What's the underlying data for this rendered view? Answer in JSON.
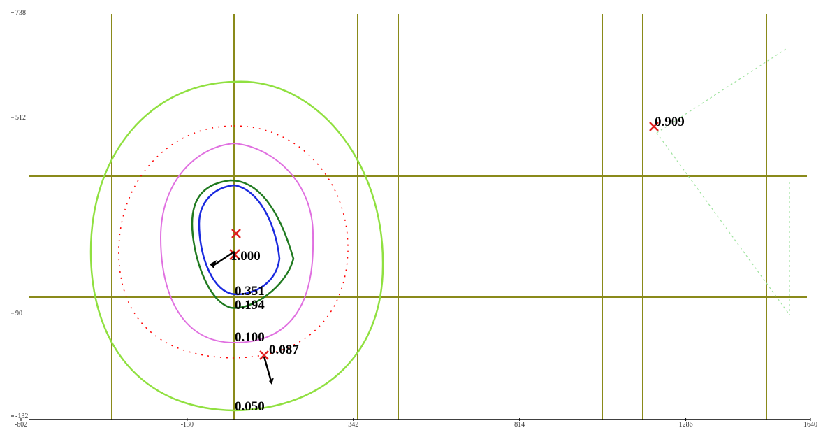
{
  "chart_data": {
    "type": "contour",
    "xlim": [
      -602,
      1640
    ],
    "ylim": [
      -132,
      738
    ],
    "xticks": [
      -602,
      -130,
      342,
      814,
      1286,
      1640
    ],
    "yticks": [
      -132,
      90,
      512,
      738
    ],
    "contour_labels": [
      "1.000",
      "0.351",
      "0.194",
      "0.100",
      "0.087",
      "0.050",
      "0.909"
    ]
  }
}
